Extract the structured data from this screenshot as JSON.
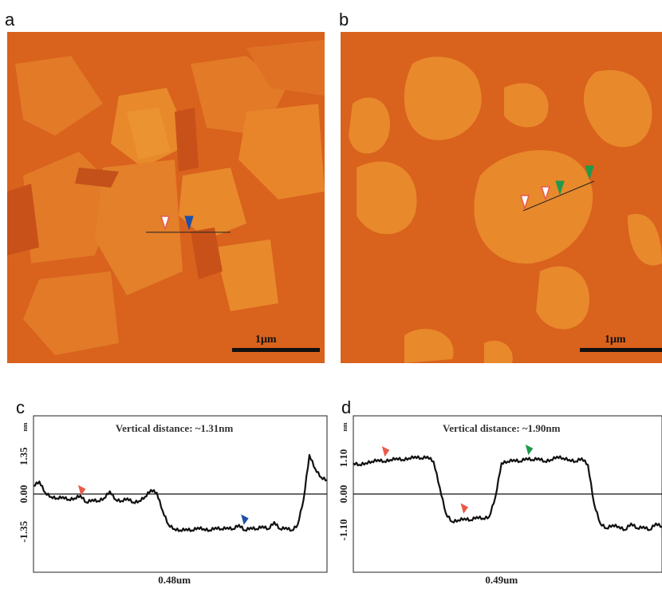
{
  "panels": {
    "a": {
      "letter": "a",
      "scale_label": "1μm"
    },
    "b": {
      "letter": "b",
      "scale_label": "1μm"
    },
    "c": {
      "letter": "c"
    },
    "d": {
      "letter": "d"
    }
  },
  "colors": {
    "afm_base": "#d9621d",
    "afm_flake": "#e8892c",
    "afm_dark": "#c8511a",
    "marker_red": "#e85a4a",
    "marker_blue": "#1f4fa8",
    "marker_green": "#1f9a4a"
  },
  "chart_data": [
    {
      "type": "line",
      "panel": "c",
      "title": "Vertical distance: ~1.31nm",
      "ylabel": "nm",
      "yticks": [
        "1.35",
        "0.00",
        "-1.35"
      ],
      "ytick_values": [
        1.35,
        0.0,
        -1.35
      ],
      "ylim": [
        -2.8,
        2.8
      ],
      "xlabel": "0.48um",
      "x": [
        0,
        0.02,
        0.04,
        0.06,
        0.08,
        0.1,
        0.12,
        0.14,
        0.16,
        0.18,
        0.2,
        0.22,
        0.24,
        0.26,
        0.28,
        0.3,
        0.32,
        0.34,
        0.36,
        0.38,
        0.4,
        0.42,
        0.44,
        0.46,
        0.48,
        0.5,
        0.52,
        0.54,
        0.56,
        0.58,
        0.6,
        0.62,
        0.64,
        0.66,
        0.68,
        0.7,
        0.72,
        0.74,
        0.76,
        0.78,
        0.8,
        0.82,
        0.84,
        0.86,
        0.88,
        0.9,
        0.92,
        0.94,
        0.96,
        0.98,
        1.0
      ],
      "y": [
        0.3,
        0.45,
        0.05,
        -0.1,
        -0.15,
        -0.1,
        -0.2,
        -0.15,
        -0.05,
        -0.3,
        -0.2,
        -0.25,
        -0.15,
        0.1,
        -0.2,
        -0.25,
        -0.15,
        -0.3,
        -0.25,
        -0.1,
        0.15,
        0.05,
        -0.6,
        -1.1,
        -1.25,
        -1.3,
        -1.25,
        -1.3,
        -1.2,
        -1.25,
        -1.3,
        -1.2,
        -1.25,
        -1.2,
        -1.25,
        -1.1,
        -1.3,
        -1.2,
        -1.25,
        -1.15,
        -1.25,
        -1.0,
        -1.25,
        -1.2,
        -1.3,
        -1.1,
        -0.2,
        1.4,
        0.9,
        0.6,
        0.5
      ],
      "markers": [
        {
          "x": 0.165,
          "y": -0.05,
          "color": "red"
        },
        {
          "x": 0.72,
          "y": -1.1,
          "color": "blue"
        }
      ]
    },
    {
      "type": "line",
      "panel": "d",
      "title": "Vertical distance: ~1.90nm",
      "ylabel": "nm",
      "yticks": [
        "1.10",
        "0.00",
        "-1.10"
      ],
      "ytick_values": [
        1.1,
        0.0,
        -1.1
      ],
      "ylim": [
        -2.4,
        2.4
      ],
      "xlabel": "0.49um",
      "x": [
        0,
        0.02,
        0.04,
        0.06,
        0.08,
        0.1,
        0.12,
        0.14,
        0.16,
        0.18,
        0.2,
        0.22,
        0.24,
        0.26,
        0.28,
        0.3,
        0.32,
        0.34,
        0.36,
        0.38,
        0.4,
        0.42,
        0.44,
        0.46,
        0.48,
        0.5,
        0.52,
        0.54,
        0.56,
        0.58,
        0.6,
        0.62,
        0.64,
        0.66,
        0.68,
        0.7,
        0.72,
        0.74,
        0.76,
        0.78,
        0.8,
        0.82,
        0.84,
        0.86,
        0.88,
        0.9,
        0.92,
        0.94,
        0.96,
        0.98,
        1.0
      ],
      "y": [
        0.95,
        0.9,
        0.95,
        1.0,
        1.05,
        1.0,
        1.05,
        1.1,
        1.05,
        1.1,
        1.15,
        1.1,
        1.15,
        1.0,
        0.2,
        -0.6,
        -0.85,
        -0.8,
        -0.75,
        -0.8,
        -0.7,
        -0.75,
        -0.7,
        -0.1,
        0.95,
        1.0,
        1.05,
        1.0,
        1.1,
        1.05,
        1.1,
        1.0,
        1.05,
        1.15,
        1.1,
        1.05,
        1.0,
        1.1,
        0.9,
        -0.3,
        -0.9,
        -1.05,
        -0.95,
        -1.0,
        -1.1,
        -0.9,
        -1.05,
        -1.0,
        -1.1,
        -0.9,
        -1.0
      ],
      "markers": [
        {
          "x": 0.105,
          "y": 1.15,
          "color": "red"
        },
        {
          "x": 0.36,
          "y": -0.6,
          "color": "red"
        },
        {
          "x": 0.57,
          "y": 1.2,
          "color": "green"
        }
      ]
    }
  ]
}
